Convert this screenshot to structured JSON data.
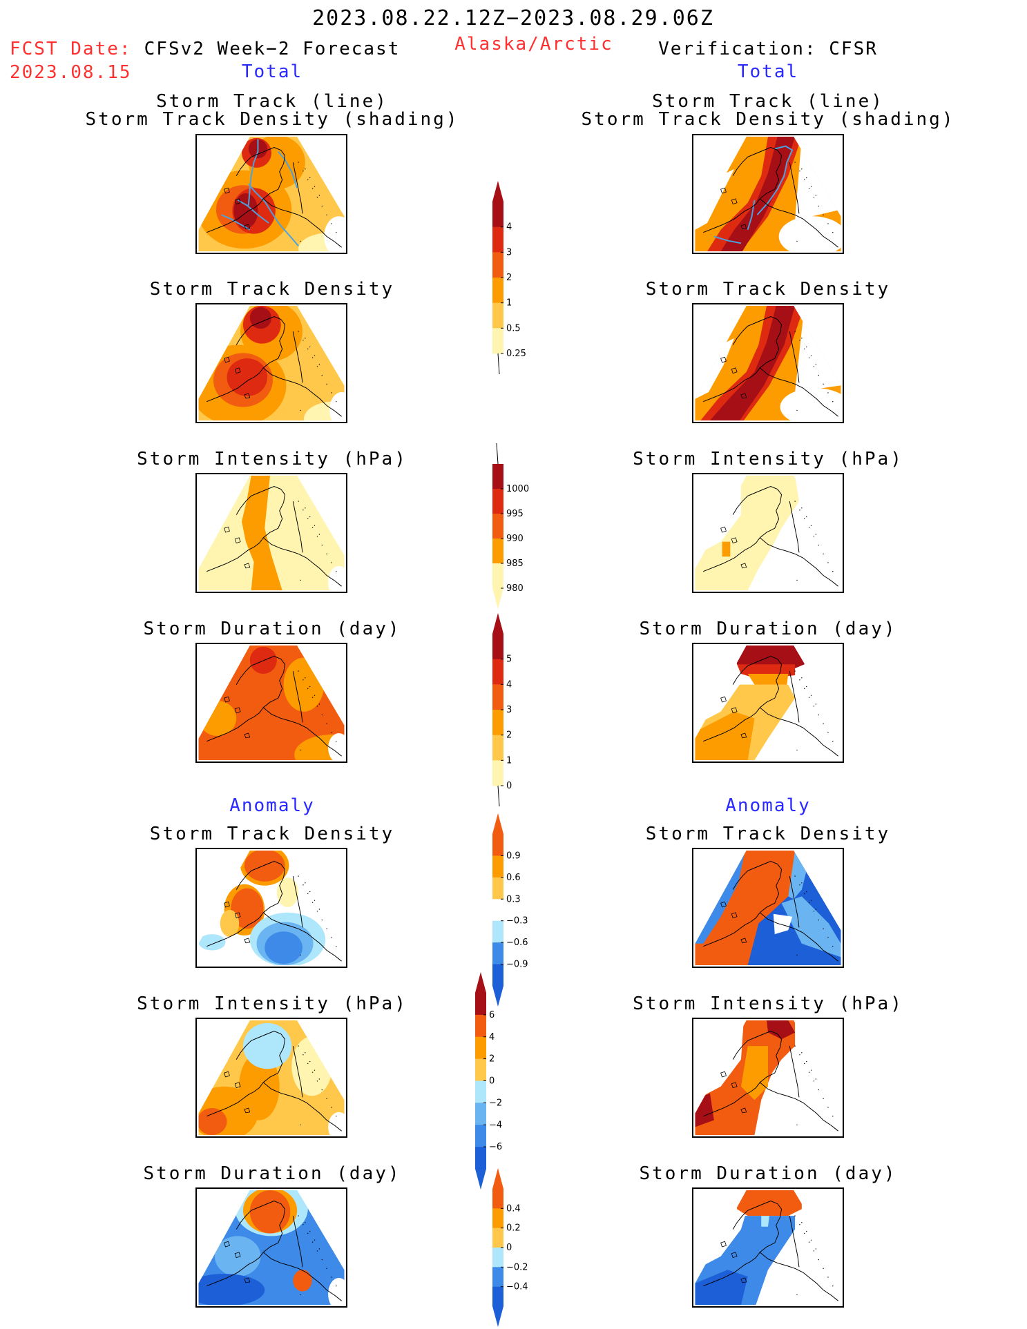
{
  "header": {
    "date_range": "2023.08.22.12Z−2023.08.29.06Z",
    "fcst_label": "FCST Date:",
    "fcst_date": "2023.08.15",
    "left_title": "CFSv2 Week−2 Forecast",
    "region": "Alaska/Arctic",
    "right_title": "Verification: CFSR",
    "total_left": "Total",
    "total_right": "Total",
    "anomaly_left": "Anomaly",
    "anomaly_right": "Anomaly"
  },
  "panels": {
    "p1": {
      "line1": "Storm Track (line)",
      "line2": "Storm Track Density (shading)"
    },
    "p2": "Storm Track Density",
    "p3": "Storm Intensity (hPa)",
    "p4": "Storm Duration (day)",
    "p5": "Storm Track Density",
    "p6": "Storm Intensity (hPa)",
    "p7": "Storm Duration (day)"
  },
  "colors": {
    "darkred": "#a50f15",
    "red": "#dd2a10",
    "orangered": "#f25c10",
    "orange": "#fd9c00",
    "lightorange": "#ffc84a",
    "paleyellow": "#fff5b0",
    "white": "#ffffff",
    "lightblue": "#aee6fb",
    "midblue": "#6ab4f2",
    "blue": "#3d8ae8",
    "darkblue": "#1c5fd6",
    "track": "#4aa3e0"
  },
  "colorbars": {
    "density_total": [
      "4",
      "3",
      "2",
      "1",
      "0.5",
      "0.25"
    ],
    "intensity_total": [
      "1000",
      "995",
      "990",
      "985",
      "980"
    ],
    "duration_total": [
      "5",
      "4",
      "3",
      "2",
      "1",
      "0"
    ],
    "density_anom": [
      "0.9",
      "0.6",
      "0.3",
      "−0.3",
      "−0.6",
      "−0.9"
    ],
    "intensity_anom": [
      "6",
      "4",
      "2",
      "0",
      "−2",
      "−4",
      "−6"
    ],
    "duration_anom": [
      "0.4",
      "0.2",
      "0",
      "−0.2",
      "−0.4"
    ]
  }
}
